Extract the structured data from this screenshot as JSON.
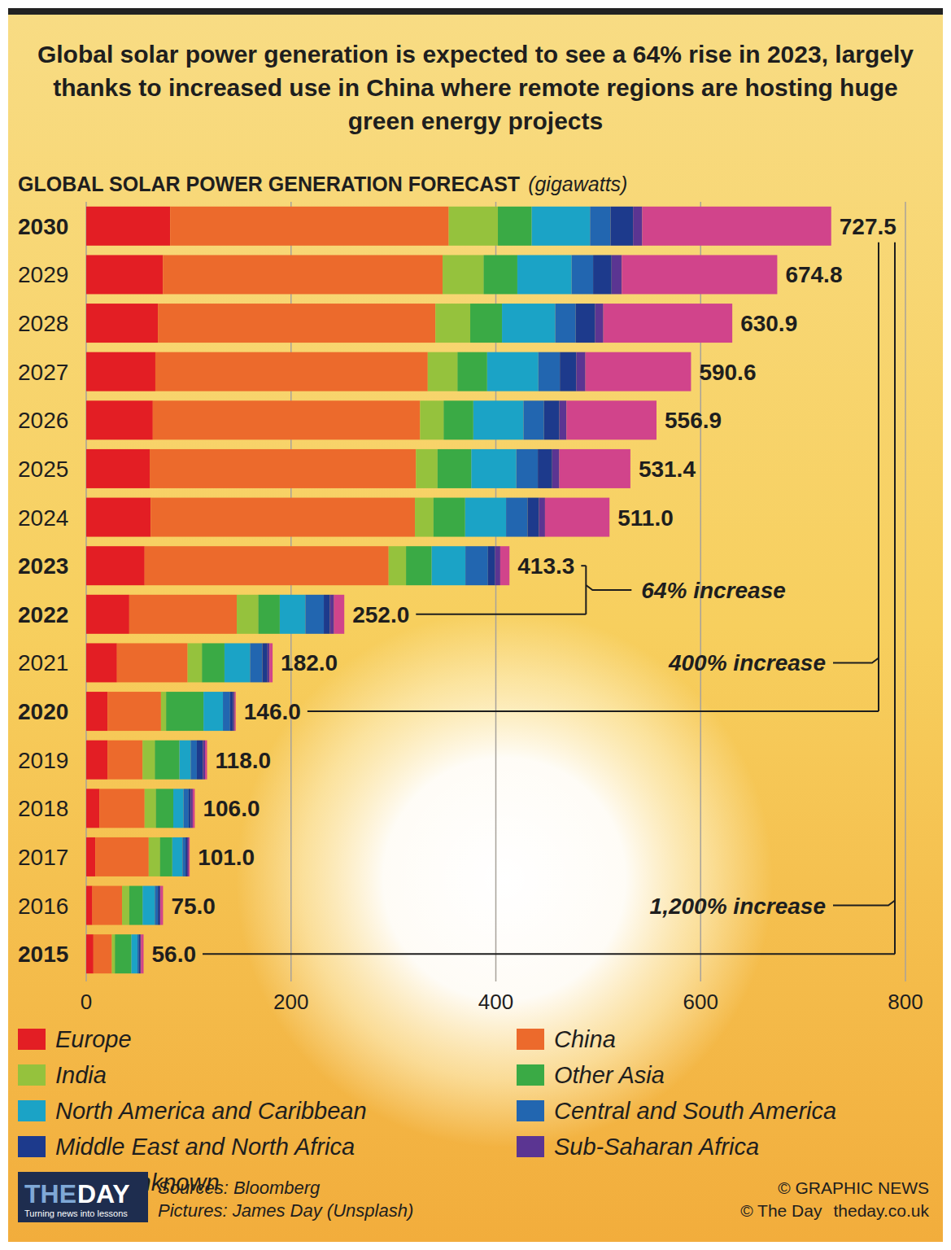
{
  "chart_data": {
    "type": "bar",
    "orientation": "horizontal",
    "stacked": true,
    "grid": true,
    "legend": "bottom",
    "title": "Global solar power generation is expected to see a 64% rise in 2023, largely thanks to increased use in China where remote regions are hosting huge green energy projects",
    "subtitle": "GLOBAL SOLAR POWER GENERATION FORECAST",
    "xlabel": "(gigawatts)",
    "categories": [
      "2030",
      "2029",
      "2028",
      "2027",
      "2026",
      "2025",
      "2024",
      "2023",
      "2022",
      "2021",
      "2020",
      "2019",
      "2018",
      "2017",
      "2016",
      "2015"
    ],
    "xlim": [
      0,
      800
    ],
    "xticks": [
      0,
      200,
      400,
      600,
      800
    ],
    "series": [
      {
        "name": "Europe",
        "color": "#e31e24",
        "values": [
          82,
          75,
          70,
          67.5,
          65,
          62,
          63,
          57,
          42,
          30,
          21,
          21,
          13,
          9,
          6,
          7
        ]
      },
      {
        "name": "China",
        "color": "#ec6a2c",
        "values": [
          272,
          273,
          271,
          266,
          261,
          260,
          258,
          238.3,
          105,
          69,
          52,
          34,
          44,
          52,
          29,
          18
        ]
      },
      {
        "name": "India",
        "color": "#95c23d",
        "values": [
          48,
          40,
          34,
          29,
          23,
          21,
          18,
          17,
          21,
          14,
          5,
          12,
          11,
          11,
          7,
          3
        ]
      },
      {
        "name": "Other Asia",
        "color": "#3aaa45",
        "values": [
          33,
          33,
          31,
          29,
          29,
          33,
          31,
          25,
          21,
          22,
          36.5,
          24,
          17,
          12,
          13,
          16
        ]
      },
      {
        "name": "North America and Caribbean",
        "color": "#1ba3c6",
        "values": [
          57,
          53,
          52,
          50,
          49,
          44,
          40,
          33,
          25,
          25,
          19,
          11,
          10,
          10,
          12,
          6
        ]
      },
      {
        "name": "Central and South America",
        "color": "#2266b0",
        "values": [
          20,
          21,
          20,
          21,
          20,
          21,
          21,
          22,
          18,
          12,
          7,
          6,
          5,
          3,
          3,
          1.5
        ]
      },
      {
        "name": "Middle East and North Africa",
        "color": "#1d3a8c",
        "values": [
          22,
          18,
          19,
          16,
          15,
          14,
          11,
          7,
          6,
          5,
          3,
          6,
          2,
          1.5,
          1.5,
          1
        ]
      },
      {
        "name": "Sub-Saharan Africa",
        "color": "#5b3592",
        "values": [
          9,
          10,
          8,
          9,
          7,
          7,
          6,
          5,
          4,
          2,
          1.5,
          2,
          2,
          1.5,
          1,
          1
        ]
      },
      {
        "name": "Buffer/unknown",
        "color": "#d1448b",
        "values": [
          184.5,
          151.8,
          125.9,
          103.1,
          87.9,
          69.4,
          63,
          9,
          10,
          3,
          1,
          2,
          2,
          1,
          2.5,
          2.5
        ]
      }
    ],
    "totals": [
      727.5,
      674.8,
      630.9,
      590.6,
      556.9,
      531.4,
      511.0,
      413.3,
      252.0,
      182.0,
      146.0,
      118.0,
      106.0,
      101.0,
      75.0,
      56.0
    ],
    "total_labels": [
      "727.5",
      "674.8",
      "630.9",
      "590.6",
      "556.9",
      "531.4",
      "511.0",
      "413.3",
      "252.0",
      "182.0",
      "146.0",
      "118.0",
      "106.0",
      "101.0",
      "75.0",
      "56.0"
    ],
    "annotations": [
      {
        "text": "64% increase",
        "from": "2022",
        "to": "2023"
      },
      {
        "text": "400% increase",
        "from": "2020",
        "to": "2030"
      },
      {
        "text": "1,200% increase",
        "from": "2015",
        "to": "2030"
      }
    ]
  },
  "footer": {
    "sources": "Sources: Bloomberg",
    "pictures": "Pictures: James Day (Unsplash)",
    "credit": "© GRAPHIC NEWS",
    "publisher": "© The Day",
    "website": "theday.co.uk"
  },
  "logo": {
    "part1": "THE",
    "part2": "DAY",
    "tagline": "Turning news into lessons"
  }
}
